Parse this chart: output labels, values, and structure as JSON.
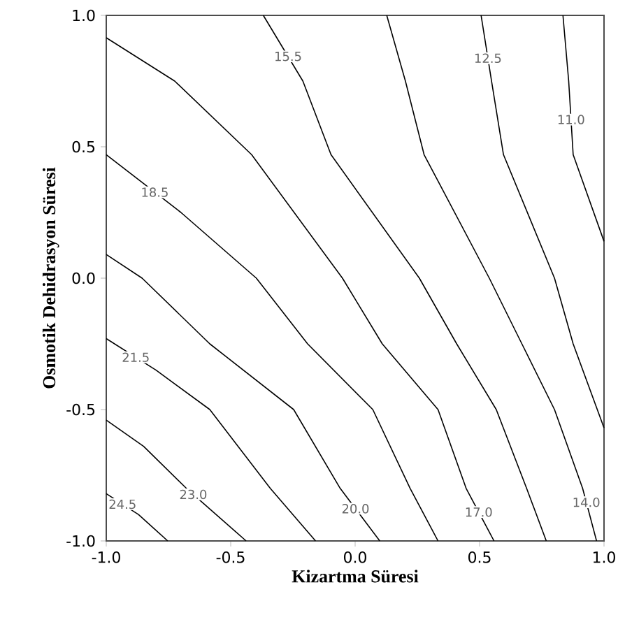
{
  "chart_data": {
    "type": "line",
    "xlabel": "Kizartma Süresi",
    "ylabel": "Osmotik Dehidrasyon Süresi",
    "xlim": [
      -1,
      1
    ],
    "ylim": [
      -1,
      1
    ],
    "xticks": [
      {
        "value": -1,
        "label": "-1.0"
      },
      {
        "value": -0.5,
        "label": "-0.5"
      },
      {
        "value": 0,
        "label": "0.0"
      },
      {
        "value": 0.5,
        "label": "0.5"
      },
      {
        "value": 1,
        "label": "1.0"
      }
    ],
    "yticks": [
      {
        "value": -1,
        "label": "-1.0"
      },
      {
        "value": -0.5,
        "label": "-0.5"
      },
      {
        "value": 0,
        "label": "0.0"
      },
      {
        "value": 0.5,
        "label": "0.5"
      },
      {
        "value": 1,
        "label": "1.0"
      }
    ],
    "grid": false,
    "marker": "none",
    "line_style": "solid",
    "series": [
      {
        "name": "24.5",
        "color": "#000000",
        "x": [
          -1,
          -0.87,
          -0.753
        ],
        "values": [
          -0.82,
          -0.9,
          -1
        ]
      },
      {
        "name": "23.0",
        "color": "#000000",
        "x": [
          -1,
          -0.85,
          -0.678,
          -0.438
        ],
        "values": [
          -0.54,
          -0.64,
          -0.8,
          -1
        ]
      },
      {
        "name": "21.5",
        "color": "#000000",
        "x": [
          -1,
          -0.8,
          -0.584,
          -0.341,
          -0.159
        ],
        "values": [
          -0.23,
          -0.35,
          -0.5,
          -0.8,
          -1
        ]
      },
      {
        "name": "20.0",
        "color": "#000000",
        "x": [
          -1,
          -0.856,
          -0.584,
          -0.247,
          -0.06,
          0.099
        ],
        "values": [
          0.09,
          0,
          -0.25,
          -0.5,
          -0.8,
          -1
        ]
      },
      {
        "name": "18.5",
        "color": "#000000",
        "x": [
          -1,
          -0.7,
          -0.397,
          -0.191,
          0.071,
          0.221,
          0.333
        ],
        "values": [
          0.47,
          0.25,
          0,
          -0.25,
          -0.5,
          -0.8,
          -1
        ]
      },
      {
        "name": "17.0",
        "color": "#000000",
        "x": [
          -1,
          -0.725,
          -0.416,
          -0.051,
          0.109,
          0.333,
          0.446,
          0.558
        ],
        "values": [
          0.915,
          0.75,
          0.47,
          0,
          -0.25,
          -0.5,
          -0.8,
          -1
        ]
      },
      {
        "name": "15.5",
        "color": "#000000",
        "x": [
          -0.369,
          -0.21,
          -0.097,
          0.258,
          0.408,
          0.567,
          0.689,
          0.768
        ],
        "values": [
          1,
          0.75,
          0.47,
          0,
          -0.25,
          -0.5,
          -0.8,
          -1
        ]
      },
      {
        "name": "14.0",
        "color": "#000000",
        "x": [
          0.127,
          0.202,
          0.277,
          0.539,
          0.67,
          0.801,
          0.914,
          0.97
        ],
        "values": [
          1,
          0.75,
          0.47,
          0,
          -0.25,
          -0.5,
          -0.8,
          -1
        ]
      },
      {
        "name": "12.5",
        "color": "#000000",
        "x": [
          0.506,
          0.548,
          0.596,
          0.801,
          0.876,
          1
        ],
        "values": [
          1,
          0.75,
          0.47,
          0,
          -0.25,
          -0.57
        ]
      },
      {
        "name": "11.0",
        "color": "#000000",
        "x": [
          0.835,
          0.858,
          0.876,
          1
        ],
        "values": [
          1,
          0.75,
          0.47,
          0.14
        ]
      }
    ]
  }
}
